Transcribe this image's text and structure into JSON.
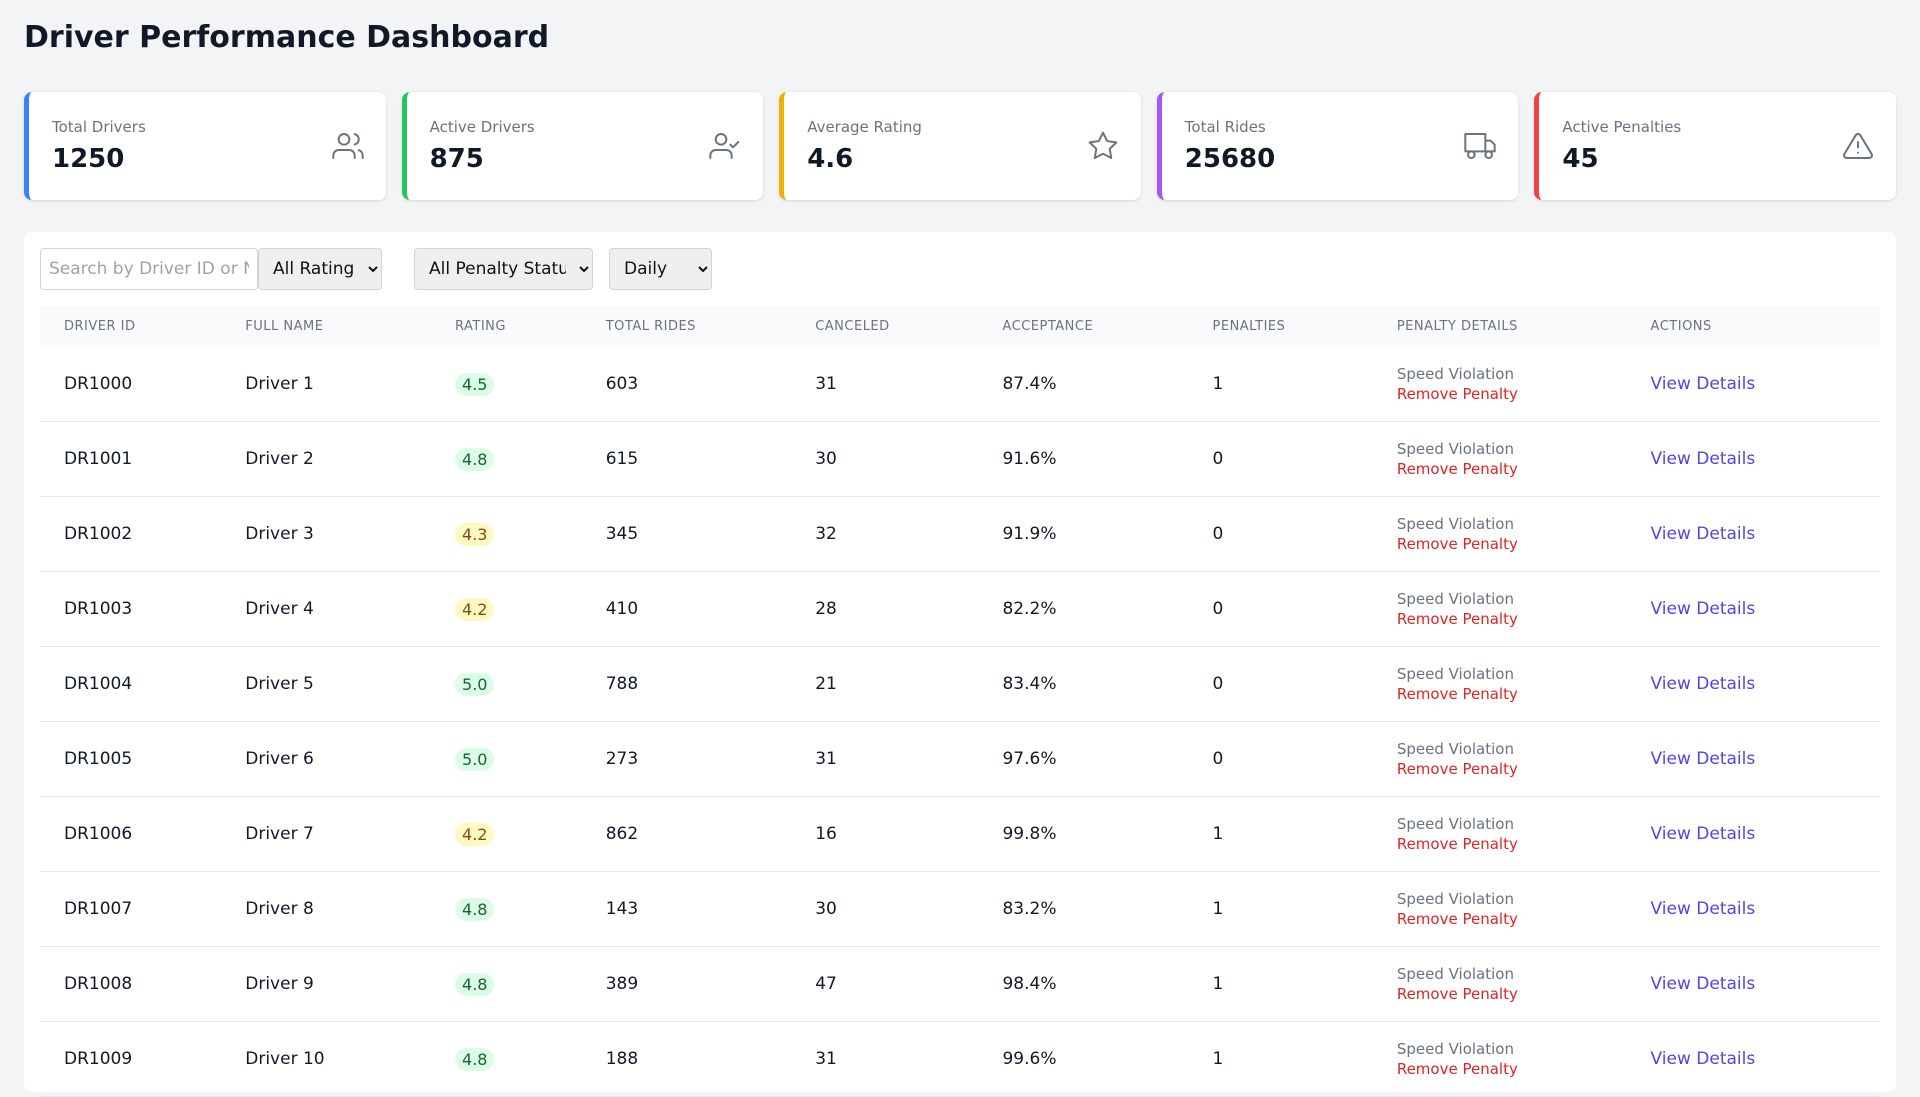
{
  "header": {
    "title": "Driver Performance Dashboard"
  },
  "cards": [
    {
      "label": "Total Drivers",
      "value": "1250",
      "color": "#3b82f6"
    },
    {
      "label": "Active Drivers",
      "value": "875",
      "color": "#22c55e"
    },
    {
      "label": "Average Rating",
      "value": "4.6",
      "color": "#eab308"
    },
    {
      "label": "Total Rides",
      "value": "25680",
      "color": "#a855f7"
    },
    {
      "label": "Active Penalties",
      "value": "45",
      "color": "#ef4444"
    }
  ],
  "filters": {
    "search_placeholder": "Search by Driver ID or Name",
    "rating": "All Ratings",
    "penalty_status": "All Penalty Status",
    "period": "Daily"
  },
  "table": {
    "columns": [
      "DRIVER ID",
      "FULL NAME",
      "RATING",
      "TOTAL RIDES",
      "CANCELED",
      "ACCEPTANCE",
      "PENALTIES",
      "PENALTY DETAILS",
      "ACTIONS"
    ],
    "rows": [
      [
        "DR1000",
        "Driver 1",
        "4.5",
        "603",
        "31",
        "87.4%",
        "1",
        "Speed Violation",
        "Remove Penalty",
        "View Details",
        "green"
      ],
      [
        "DR1001",
        "Driver 2",
        "4.8",
        "615",
        "30",
        "91.6%",
        "0",
        "Speed Violation",
        "Remove Penalty",
        "View Details",
        "green"
      ],
      [
        "DR1002",
        "Driver 3",
        "4.3",
        "345",
        "32",
        "91.9%",
        "0",
        "Speed Violation",
        "Remove Penalty",
        "View Details",
        "yellow"
      ],
      [
        "DR1003",
        "Driver 4",
        "4.2",
        "410",
        "28",
        "82.2%",
        "0",
        "Speed Violation",
        "Remove Penalty",
        "View Details",
        "yellow"
      ],
      [
        "DR1004",
        "Driver 5",
        "5.0",
        "788",
        "21",
        "83.4%",
        "0",
        "Speed Violation",
        "Remove Penalty",
        "View Details",
        "green"
      ],
      [
        "DR1005",
        "Driver 6",
        "5.0",
        "273",
        "31",
        "97.6%",
        "0",
        "Speed Violation",
        "Remove Penalty",
        "View Details",
        "green"
      ],
      [
        "DR1006",
        "Driver 7",
        "4.2",
        "862",
        "16",
        "99.8%",
        "1",
        "Speed Violation",
        "Remove Penalty",
        "View Details",
        "yellow"
      ],
      [
        "DR1007",
        "Driver 8",
        "4.8",
        "143",
        "30",
        "83.2%",
        "1",
        "Speed Violation",
        "Remove Penalty",
        "View Details",
        "green"
      ],
      [
        "DR1008",
        "Driver 9",
        "4.8",
        "389",
        "47",
        "98.4%",
        "1",
        "Speed Violation",
        "Remove Penalty",
        "View Details",
        "green"
      ],
      [
        "DR1009",
        "Driver 10",
        "4.8",
        "188",
        "31",
        "99.6%",
        "1",
        "Speed Violation",
        "Remove Penalty",
        "View Details",
        "green"
      ]
    ]
  }
}
